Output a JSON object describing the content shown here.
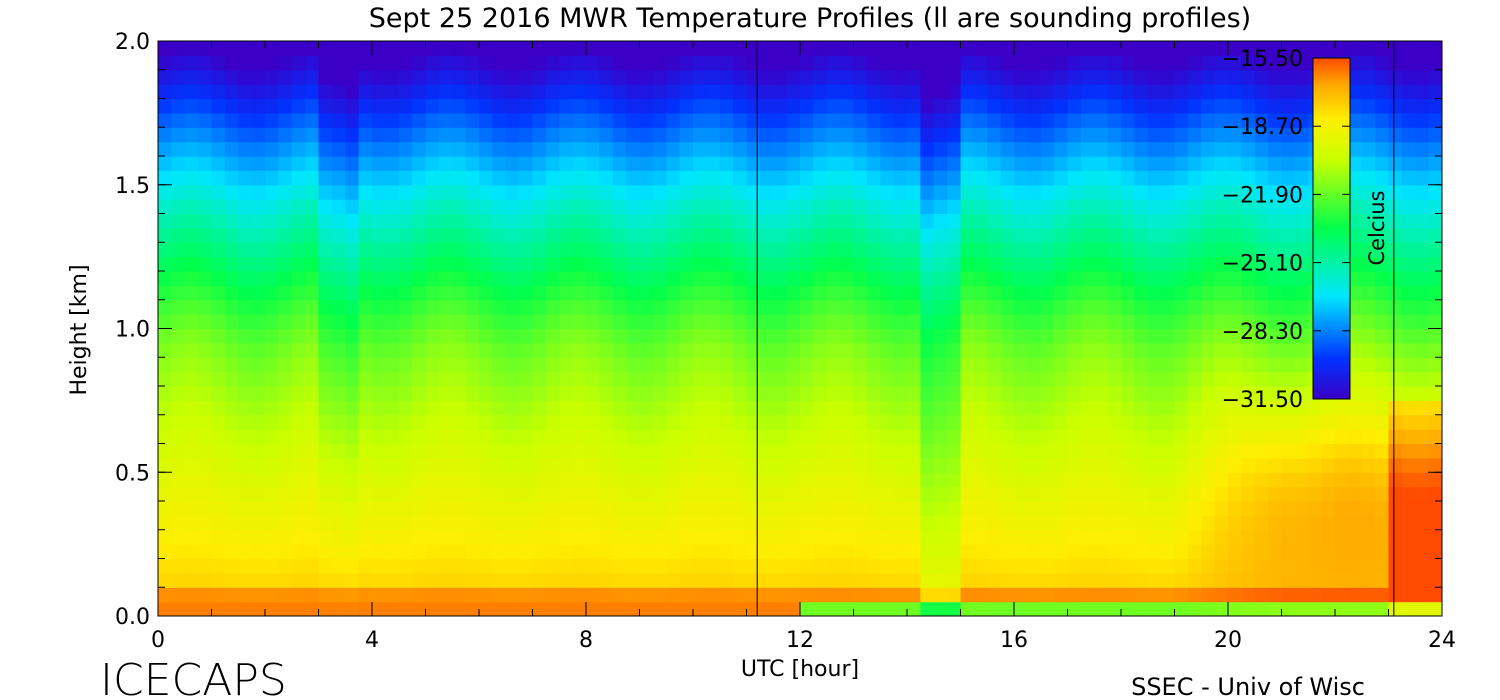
{
  "chart_data": {
    "type": "heatmap",
    "title": "Sept 25 2016 MWR Temperature Profiles (ll are sounding profiles)",
    "xlabel": "UTC [hour]",
    "ylabel": "Height [km]",
    "xlim": [
      0,
      24
    ],
    "ylim": [
      0,
      2.0
    ],
    "x_ticks": [
      "0",
      "4",
      "8",
      "12",
      "16",
      "20",
      "24"
    ],
    "y_ticks": [
      "0.0",
      "0.5",
      "1.0",
      "1.5",
      "2.0"
    ],
    "colorbar": {
      "label": "Celcius",
      "ticks": [
        "-15.50",
        "-18.70",
        "-21.90",
        "-25.10",
        "-28.30",
        "-31.50"
      ],
      "range": [
        -31.5,
        -15.5
      ]
    },
    "sounding_times_utc": [
      11.2,
      23.1
    ],
    "grid": false
  },
  "footer": {
    "left": "ICECAPS",
    "right": "SSEC - Univ of Wisc"
  }
}
